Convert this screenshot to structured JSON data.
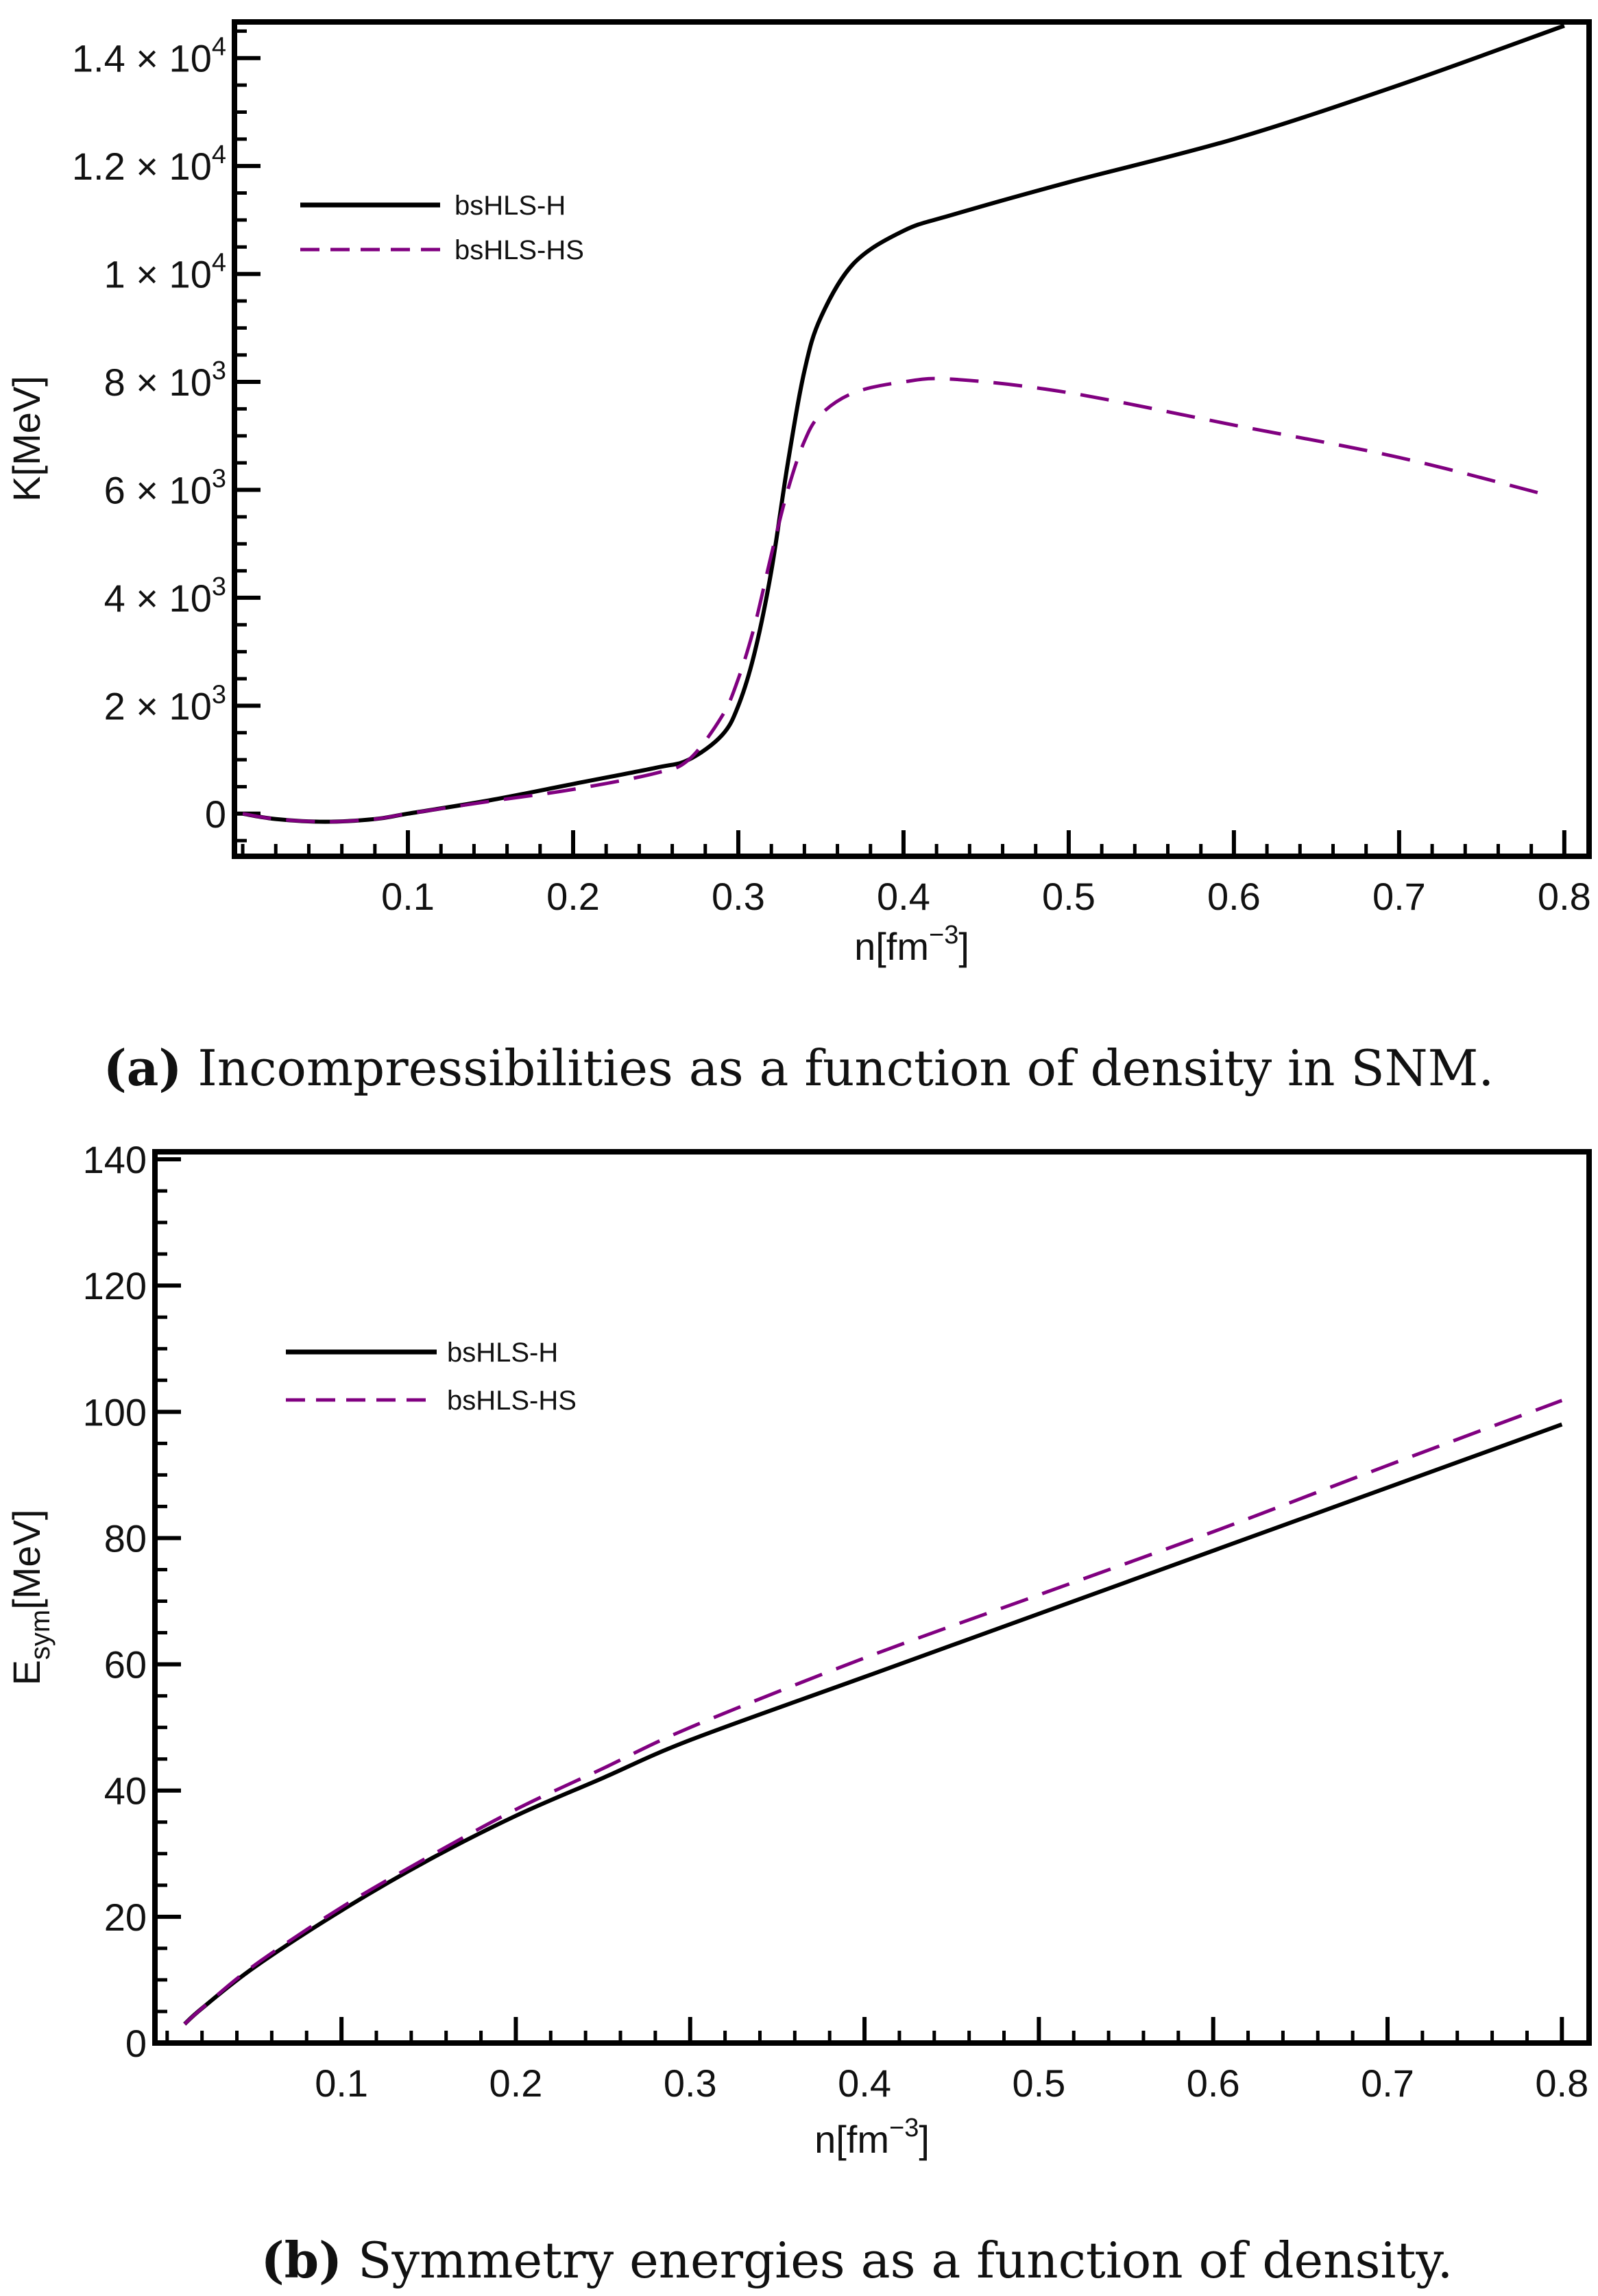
{
  "colors": {
    "bsHLS-H": "#000000",
    "bsHLS-HS": "#800080"
  },
  "chart_data": [
    {
      "type": "line",
      "caption_tag": "(a)",
      "caption": "Incompressibilities as a function of density in SNM.",
      "xlabel": "n[fm",
      "xlabel_sup": "−3",
      "xlabel_end": "]",
      "ylabel": "K[MeV]",
      "xlim": [
        -0.005,
        0.815
      ],
      "ylim": [
        -790,
        14670
      ],
      "xticks": [
        0.1,
        0.2,
        0.3,
        0.4,
        0.5,
        0.6,
        0.7,
        0.8
      ],
      "xtick_labels": [
        "0.1",
        "0.2",
        "0.3",
        "0.4",
        "0.5",
        "0.6",
        "0.7",
        "0.8"
      ],
      "yticks": [
        0,
        2000,
        4000,
        6000,
        8000,
        10000,
        12000,
        14000
      ],
      "ytick_labels": [
        {
          "base": "0",
          "exp": ""
        },
        {
          "base": "2 × 10",
          "exp": "3"
        },
        {
          "base": "4 × 10",
          "exp": "3"
        },
        {
          "base": "6 × 10",
          "exp": "3"
        },
        {
          "base": "8 × 10",
          "exp": "3"
        },
        {
          "base": "1 × 10",
          "exp": "4"
        },
        {
          "base": "1.2 × 10",
          "exp": "4"
        },
        {
          "base": "1.4 × 10",
          "exp": "4"
        }
      ],
      "legend_position": "top-left",
      "grid": false,
      "series": [
        {
          "name": "bsHLS-H",
          "style": "solid",
          "x": [
            0.0,
            0.02,
            0.05,
            0.08,
            0.1,
            0.15,
            0.2,
            0.25,
            0.27,
            0.29,
            0.3,
            0.31,
            0.32,
            0.33,
            0.34,
            0.35,
            0.37,
            0.4,
            0.43,
            0.5,
            0.6,
            0.7,
            0.8
          ],
          "y": [
            0,
            -100,
            -150,
            -100,
            0,
            250,
            550,
            850,
            1000,
            1450,
            2000,
            3000,
            4500,
            6500,
            8200,
            9200,
            10200,
            10800,
            11100,
            11700,
            12500,
            13500,
            14600
          ]
        },
        {
          "name": "bsHLS-HS",
          "style": "dashed",
          "x": [
            0.0,
            0.02,
            0.05,
            0.08,
            0.1,
            0.15,
            0.2,
            0.25,
            0.27,
            0.29,
            0.3,
            0.31,
            0.32,
            0.33,
            0.34,
            0.35,
            0.37,
            0.4,
            0.43,
            0.5,
            0.6,
            0.7,
            0.79
          ],
          "y": [
            0,
            -100,
            -150,
            -100,
            0,
            230,
            450,
            750,
            1000,
            1800,
            2500,
            3500,
            4800,
            6000,
            6900,
            7400,
            7800,
            8000,
            8050,
            7800,
            7200,
            6600,
            5900
          ]
        }
      ]
    },
    {
      "type": "line",
      "caption_tag": "(b)",
      "caption": "Symmetry energies as a function of density.",
      "xlabel": "n[fm",
      "xlabel_sup": "−3",
      "xlabel_end": "]",
      "ylabel": "E",
      "ylabel_sub": "sym",
      "ylabel_end": "[MeV]",
      "xlim": [
        -0.007,
        0.8156
      ],
      "ylim": [
        0,
        141.2
      ],
      "xticks": [
        0.1,
        0.2,
        0.3,
        0.4,
        0.5,
        0.6,
        0.7,
        0.8
      ],
      "xtick_labels": [
        "0.1",
        "0.2",
        "0.3",
        "0.4",
        "0.5",
        "0.6",
        "0.7",
        "0.8"
      ],
      "yticks": [
        0,
        20,
        40,
        60,
        80,
        100,
        120,
        140
      ],
      "ytick_labels": [
        "0",
        "20",
        "40",
        "60",
        "80",
        "100",
        "120",
        "140"
      ],
      "legend_position": "top-left",
      "grid": false,
      "series": [
        {
          "name": "bsHLS-H",
          "style": "solid",
          "x": [
            0.01,
            0.02,
            0.05,
            0.1,
            0.15,
            0.2,
            0.25,
            0.3,
            0.4,
            0.5,
            0.6,
            0.7,
            0.8
          ],
          "y": [
            3,
            5.5,
            12,
            21,
            29,
            36,
            42,
            48,
            58,
            68,
            78,
            88,
            98
          ]
        },
        {
          "name": "bsHLS-HS",
          "style": "dashed",
          "x": [
            0.01,
            0.02,
            0.05,
            0.1,
            0.15,
            0.2,
            0.25,
            0.3,
            0.4,
            0.5,
            0.6,
            0.7,
            0.8
          ],
          "y": [
            3,
            5.5,
            12.3,
            21.5,
            29.5,
            37,
            43.5,
            50,
            61,
            71,
            81,
            91.5,
            101.8
          ]
        }
      ]
    }
  ]
}
